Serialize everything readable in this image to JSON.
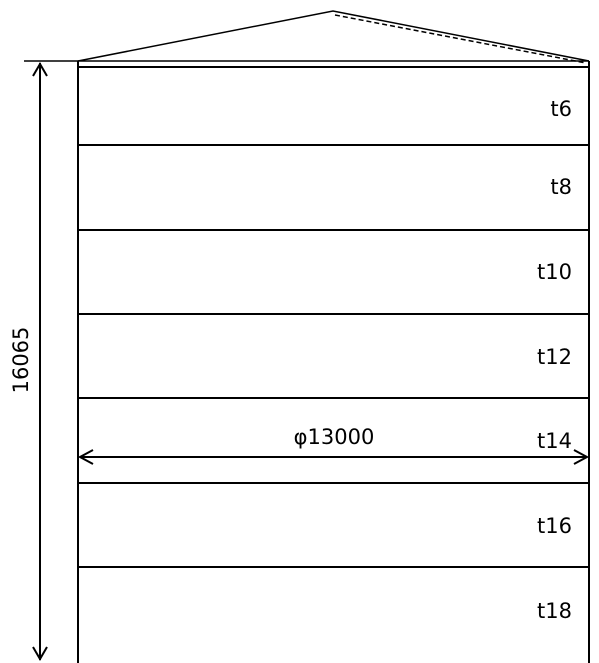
{
  "tank": {
    "height_label": "16065",
    "diameter_label": "φ13000",
    "courses": [
      {
        "thickness": "t6"
      },
      {
        "thickness": "t8"
      },
      {
        "thickness": "t10"
      },
      {
        "thickness": "t12"
      },
      {
        "thickness": "t14"
      },
      {
        "thickness": "t16"
      },
      {
        "thickness": "t18"
      }
    ]
  }
}
